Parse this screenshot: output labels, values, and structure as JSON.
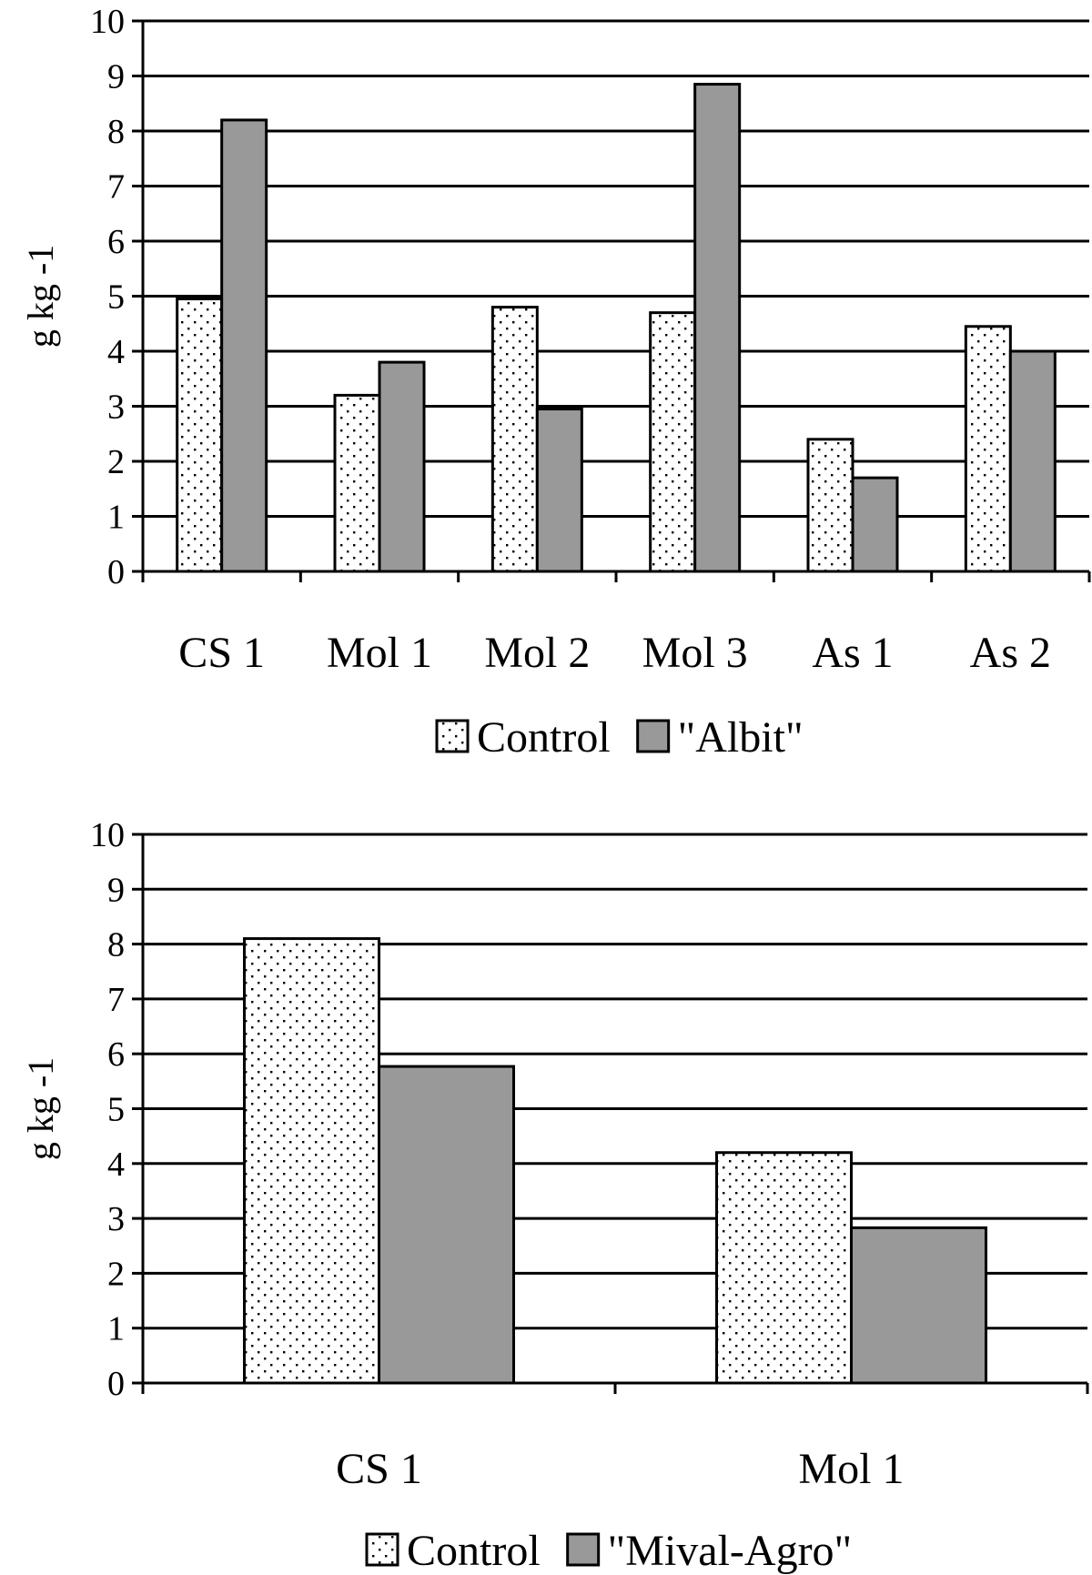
{
  "chart_data": [
    {
      "type": "bar",
      "title": "",
      "xlabel": "",
      "ylabel": "g kg -1",
      "ylim": [
        0,
        10
      ],
      "yticks": [
        "0",
        "1",
        "2",
        "3",
        "4",
        "5",
        "6",
        "7",
        "8",
        "9",
        "10"
      ],
      "grid": "horizontal",
      "legend_position": "bottom-center",
      "categories": [
        "CS 1",
        "Mol 1",
        "Mol 2",
        "Mol 3",
        "As 1",
        "As 2"
      ],
      "series": [
        {
          "name": "Control",
          "values": [
            4.95,
            3.2,
            4.8,
            4.7,
            2.4,
            4.45
          ],
          "pattern": "dotted",
          "color": "#ffffff"
        },
        {
          "name": "\"Albit\"",
          "values": [
            8.2,
            3.8,
            2.95,
            8.85,
            1.7,
            4.0
          ],
          "pattern": "solid",
          "color": "#999999"
        }
      ]
    },
    {
      "type": "bar",
      "title": "",
      "xlabel": "",
      "ylabel": "g kg -1",
      "ylim": [
        0,
        10
      ],
      "yticks": [
        "0",
        "1",
        "2",
        "3",
        "4",
        "5",
        "6",
        "7",
        "8",
        "9",
        "10"
      ],
      "grid": "horizontal",
      "legend_position": "bottom-center",
      "categories": [
        "CS 1",
        "Mol 1"
      ],
      "series": [
        {
          "name": "Control",
          "values": [
            8.1,
            4.2
          ],
          "pattern": "dotted",
          "color": "#ffffff"
        },
        {
          "name": "\"Mival-Agro\"",
          "values": [
            5.77,
            2.83
          ],
          "pattern": "solid",
          "color": "#999999"
        }
      ]
    }
  ]
}
